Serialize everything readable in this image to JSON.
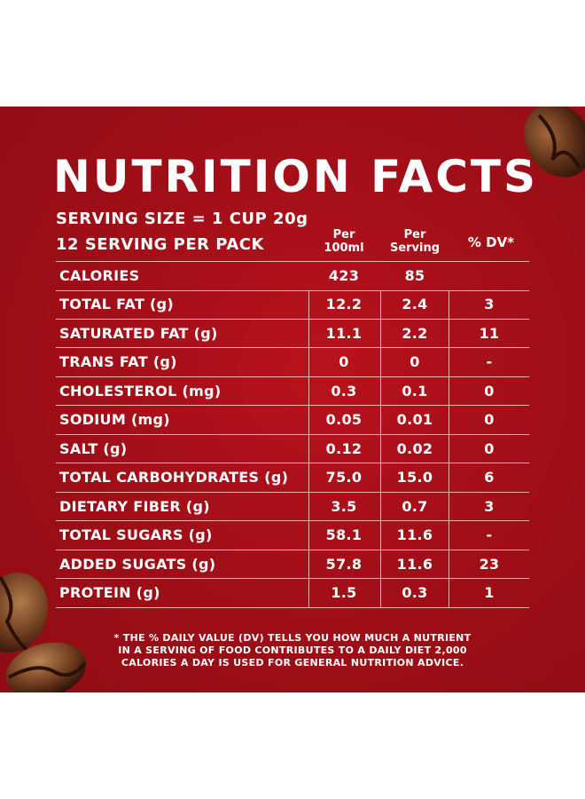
{
  "title": "NUTRITION FACTS",
  "serving_size": "SERVING SIZE = 1 CUP 20g",
  "servings_per_pack": "12 SERVING PER PACK",
  "columns": {
    "per100_line1": "Per",
    "per100_line2": "100ml",
    "perserving_line1": "Per",
    "perserving_line2": "Serving",
    "dv": "% DV*"
  },
  "rows": [
    {
      "label": "CALORIES",
      "per100": "423",
      "perserving": "85",
      "dv": ""
    },
    {
      "label": "TOTAL FAT (g)",
      "per100": "12.2",
      "perserving": "2.4",
      "dv": "3"
    },
    {
      "label": "SATURATED FAT (g)",
      "per100": "11.1",
      "perserving": "2.2",
      "dv": "11"
    },
    {
      "label": "TRANS FAT (g)",
      "per100": "0",
      "perserving": "0",
      "dv": "-"
    },
    {
      "label": "CHOLESTEROL (mg)",
      "per100": "0.3",
      "perserving": "0.1",
      "dv": "0"
    },
    {
      "label": "SODIUM (mg)",
      "per100": "0.05",
      "perserving": "0.01",
      "dv": "0"
    },
    {
      "label": "SALT (g)",
      "per100": "0.12",
      "perserving": "0.02",
      "dv": "0"
    },
    {
      "label": "TOTAL CARBOHYDRATES (g)",
      "per100": "75.0",
      "perserving": "15.0",
      "dv": "6"
    },
    {
      "label": "DIETARY FIBER (g)",
      "per100": "3.5",
      "perserving": "0.7",
      "dv": "3"
    },
    {
      "label": "TOTAL SUGARS (g)",
      "per100": "58.1",
      "perserving": "11.6",
      "dv": "-"
    },
    {
      "label": "ADDED SUGATS (g)",
      "per100": "57.8",
      "perserving": "11.6",
      "dv": "23"
    },
    {
      "label": "PROTEIN (g)",
      "per100": "1.5",
      "perserving": "0.3",
      "dv": "1"
    }
  ],
  "footnote": {
    "line1": "* THE % DAILY VALUE (DV) TELLS YOU HOW MUCH A NUTRIENT",
    "line2": "IN A SERVING OF FOOD CONTRIBUTES TO A DAILY DIET 2,000",
    "line3": "CALORIES A DAY IS USED FOR GENERAL NUTRITION ADVICE."
  },
  "colors": {
    "background": "#a30f18",
    "text": "#ffffff",
    "rule": "#f4c7c9",
    "bean": "#5a2d16"
  }
}
